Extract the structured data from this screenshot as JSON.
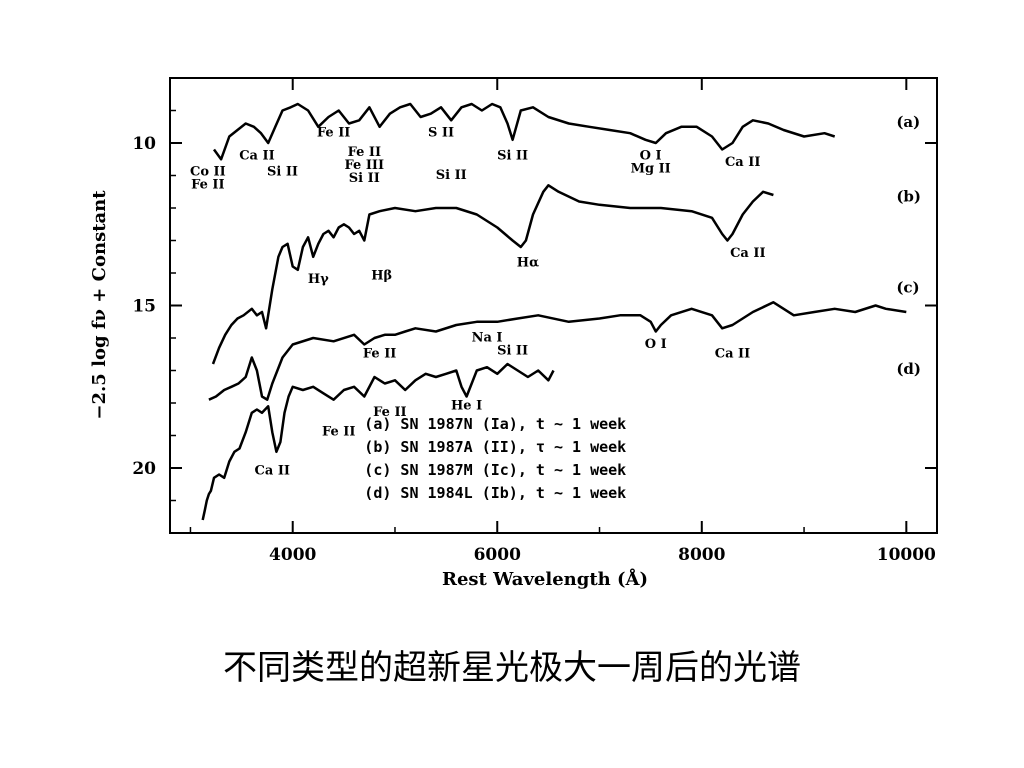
{
  "chart_data": {
    "type": "line",
    "xlabel": "Rest Wavelength (Å)",
    "ylabel": "−2.5 log fν + Constant",
    "xlim": [
      2800,
      10300
    ],
    "ylim": [
      22,
      8
    ],
    "y_inverted": true,
    "x_ticks": [
      4000,
      6000,
      8000,
      10000
    ],
    "y_ticks": [
      10,
      15,
      20
    ],
    "grid": false,
    "legend_placement": "bottom-right",
    "legend": [
      "(a) SN 1987N (Ia), t ~ 1 week",
      "(b) SN 1987A (II), τ ~ 1 week",
      "(c) SN 1987M (Ic), t ~ 1 week",
      "(d) SN 1984L (Ib), t ~ 1 week"
    ],
    "series": [
      {
        "name": "(a)",
        "tag_x": 10000,
        "tag_y": 9.5,
        "x": [
          3230,
          3300,
          3380,
          3460,
          3540,
          3620,
          3690,
          3760,
          3830,
          3900,
          3980,
          4050,
          4150,
          4250,
          4350,
          4450,
          4550,
          4650,
          4750,
          4850,
          4950,
          5050,
          5150,
          5250,
          5350,
          5450,
          5550,
          5650,
          5750,
          5850,
          5950,
          6030,
          6100,
          6150,
          6230,
          6350,
          6500,
          6700,
          6900,
          7100,
          7300,
          7450,
          7550,
          7650,
          7800,
          7950,
          8100,
          8200,
          8300,
          8400,
          8500,
          8650,
          8800,
          9000,
          9200,
          9300
        ],
        "y": [
          10.2,
          10.5,
          9.8,
          9.6,
          9.4,
          9.5,
          9.7,
          10.0,
          9.5,
          9.0,
          8.9,
          8.8,
          9.0,
          9.5,
          9.2,
          9.0,
          9.4,
          9.3,
          8.9,
          9.5,
          9.1,
          8.9,
          8.8,
          9.2,
          9.1,
          8.9,
          9.3,
          8.9,
          8.8,
          9.0,
          8.8,
          8.9,
          9.4,
          9.9,
          9.0,
          8.9,
          9.2,
          9.4,
          9.5,
          9.6,
          9.7,
          9.9,
          10.0,
          9.7,
          9.5,
          9.5,
          9.8,
          10.2,
          10.0,
          9.5,
          9.3,
          9.4,
          9.6,
          9.8,
          9.7,
          9.8
        ]
      },
      {
        "name": "(b)",
        "tag_x": 10000,
        "tag_y": 11.8,
        "x": [
          3220,
          3280,
          3340,
          3400,
          3460,
          3520,
          3600,
          3650,
          3700,
          3740,
          3800,
          3860,
          3900,
          3950,
          4000,
          4050,
          4100,
          4150,
          4200,
          4250,
          4300,
          4350,
          4400,
          4450,
          4500,
          4550,
          4600,
          4650,
          4700,
          4750,
          4850,
          5000,
          5200,
          5400,
          5600,
          5800,
          6000,
          6150,
          6230,
          6280,
          6350,
          6450,
          6500,
          6600,
          6800,
          7000,
          7300,
          7600,
          7900,
          8100,
          8200,
          8250,
          8300,
          8400,
          8500,
          8600,
          8700
        ],
        "y": [
          16.8,
          16.3,
          15.9,
          15.6,
          15.4,
          15.3,
          15.1,
          15.3,
          15.2,
          15.7,
          14.5,
          13.5,
          13.2,
          13.1,
          13.8,
          13.9,
          13.2,
          12.9,
          13.5,
          13.1,
          12.8,
          12.7,
          12.9,
          12.6,
          12.5,
          12.6,
          12.8,
          12.7,
          13.0,
          12.2,
          12.1,
          12.0,
          12.1,
          12.0,
          12.0,
          12.2,
          12.6,
          13.0,
          13.2,
          13.0,
          12.2,
          11.5,
          11.3,
          11.5,
          11.8,
          11.9,
          12.0,
          12.0,
          12.1,
          12.3,
          12.8,
          13.0,
          12.8,
          12.2,
          11.8,
          11.5,
          11.6
        ]
      },
      {
        "name": "(c)",
        "tag_x": 10000,
        "tag_y": 14.6,
        "x": [
          3180,
          3250,
          3330,
          3400,
          3470,
          3540,
          3600,
          3650,
          3700,
          3750,
          3800,
          3900,
          4000,
          4200,
          4400,
          4600,
          4700,
          4800,
          4900,
          5000,
          5100,
          5200,
          5400,
          5600,
          5800,
          6000,
          6200,
          6400,
          6700,
          7000,
          7200,
          7400,
          7500,
          7550,
          7600,
          7700,
          7900,
          8100,
          8200,
          8300,
          8500,
          8700,
          8800,
          8900,
          9100,
          9300,
          9500,
          9700,
          9800,
          10000
        ],
        "y": [
          17.9,
          17.8,
          17.6,
          17.5,
          17.4,
          17.2,
          16.6,
          17.0,
          17.8,
          17.9,
          17.4,
          16.6,
          16.2,
          16.0,
          16.1,
          15.9,
          16.2,
          16.0,
          15.9,
          15.9,
          15.8,
          15.7,
          15.8,
          15.6,
          15.5,
          15.5,
          15.4,
          15.3,
          15.5,
          15.4,
          15.3,
          15.3,
          15.5,
          15.8,
          15.6,
          15.3,
          15.1,
          15.3,
          15.7,
          15.6,
          15.2,
          14.9,
          15.1,
          15.3,
          15.2,
          15.1,
          15.2,
          15.0,
          15.1,
          15.2
        ]
      },
      {
        "name": "(d)",
        "tag_x": 10000,
        "tag_y": 17.1,
        "x": [
          3120,
          3140,
          3160,
          3180,
          3200,
          3230,
          3280,
          3330,
          3380,
          3430,
          3480,
          3540,
          3600,
          3650,
          3700,
          3760,
          3800,
          3840,
          3880,
          3920,
          3960,
          4000,
          4100,
          4200,
          4300,
          4400,
          4500,
          4600,
          4700,
          4800,
          4900,
          5000,
          5100,
          5200,
          5300,
          5400,
          5500,
          5600,
          5650,
          5700,
          5750,
          5800,
          5900,
          6000,
          6100,
          6200,
          6300,
          6400,
          6500,
          6550
        ],
        "y": [
          21.6,
          21.3,
          21.0,
          20.8,
          20.7,
          20.3,
          20.2,
          20.3,
          19.8,
          19.5,
          19.4,
          18.9,
          18.3,
          18.2,
          18.3,
          18.1,
          18.9,
          19.5,
          19.2,
          18.3,
          17.8,
          17.5,
          17.6,
          17.5,
          17.7,
          17.9,
          17.6,
          17.5,
          17.8,
          17.2,
          17.4,
          17.3,
          17.6,
          17.3,
          17.1,
          17.2,
          17.1,
          17.0,
          17.5,
          17.8,
          17.4,
          17.0,
          16.9,
          17.1,
          16.8,
          17.0,
          17.2,
          17.0,
          17.3,
          17.0
        ]
      }
    ],
    "annotations": [
      {
        "text": "Fe II",
        "x": 4400,
        "y": 9.8
      },
      {
        "text": "S II",
        "x": 5450,
        "y": 9.8
      },
      {
        "text": "Ca II",
        "x": 3650,
        "y": 10.5
      },
      {
        "text": "Fe II",
        "x": 4700,
        "y": 10.4
      },
      {
        "text": "Si II",
        "x": 3900,
        "y": 11.0
      },
      {
        "text": "Fe III",
        "x": 4700,
        "y": 10.8
      },
      {
        "text": "Si II",
        "x": 4700,
        "y": 11.2
      },
      {
        "text": "Si II",
        "x": 5550,
        "y": 11.1
      },
      {
        "text": "Si II",
        "x": 6150,
        "y": 10.5
      },
      {
        "text": "O I",
        "x": 7500,
        "y": 10.5
      },
      {
        "text": "Mg II",
        "x": 7500,
        "y": 10.9
      },
      {
        "text": "Ca II",
        "x": 8400,
        "y": 10.7
      },
      {
        "text": "Co II",
        "x": 3170,
        "y": 11.0
      },
      {
        "text": "Fe II",
        "x": 3170,
        "y": 11.4
      },
      {
        "text": "Hγ",
        "x": 4250,
        "y": 14.3
      },
      {
        "text": "Hβ",
        "x": 4870,
        "y": 14.2
      },
      {
        "text": "Hα",
        "x": 6300,
        "y": 13.8
      },
      {
        "text": "Ca II",
        "x": 8450,
        "y": 13.5
      },
      {
        "text": "Na I",
        "x": 5900,
        "y": 16.1
      },
      {
        "text": "Si II",
        "x": 6150,
        "y": 16.5
      },
      {
        "text": "Fe II",
        "x": 4850,
        "y": 16.6
      },
      {
        "text": "O I",
        "x": 7550,
        "y": 16.3
      },
      {
        "text": "Ca II",
        "x": 8300,
        "y": 16.6
      },
      {
        "text": "Fe II",
        "x": 4950,
        "y": 18.4
      },
      {
        "text": "He I",
        "x": 5700,
        "y": 18.2
      },
      {
        "text": "Fe II",
        "x": 4450,
        "y": 19.0
      },
      {
        "text": "Ca II",
        "x": 3800,
        "y": 20.2
      }
    ]
  },
  "caption": "不同类型的超新星光极大一周后的光谱"
}
